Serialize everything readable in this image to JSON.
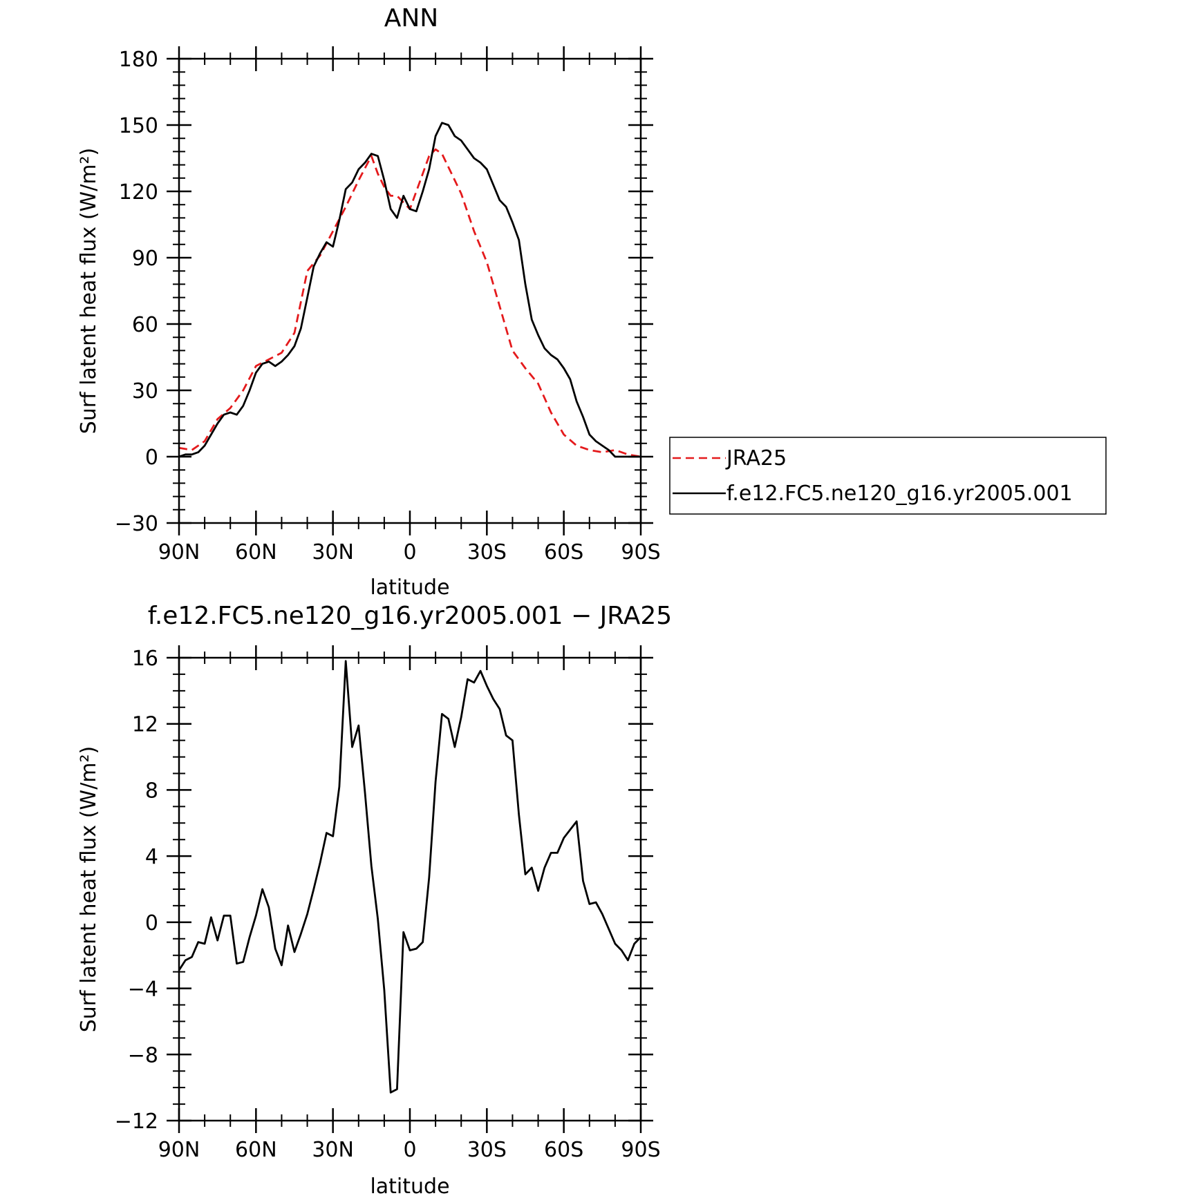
{
  "chart_data": [
    {
      "type": "line",
      "title": "ANN",
      "xlabel": "latitude",
      "ylabel": "Surf latent heat flux (W/m²)",
      "xlim": [
        90,
        -90
      ],
      "ylim": [
        -30,
        180
      ],
      "yticks": [
        -30,
        0,
        30,
        60,
        90,
        120,
        150,
        180
      ],
      "xticks": [
        90,
        60,
        30,
        0,
        -30,
        -60,
        -90
      ],
      "xtick_labels": [
        "90N",
        "60N",
        "30N",
        "0",
        "30S",
        "60S",
        "90S"
      ],
      "legend_position": "right",
      "series": [
        {
          "name": "JRA25",
          "color": "#e41a1c",
          "dash": "dashed",
          "x": [
            90,
            85,
            80,
            75,
            70,
            65,
            60,
            55,
            50,
            45,
            40,
            35,
            30,
            25,
            20,
            15,
            12.5,
            10,
            7.5,
            5,
            2.5,
            0,
            -2.5,
            -5,
            -7.5,
            -10,
            -12.5,
            -15,
            -20,
            -25,
            -30,
            -35,
            -40,
            -45,
            -50,
            -55,
            -60,
            -65,
            -70,
            -75,
            -80,
            -85,
            -90
          ],
          "y": [
            4,
            3,
            7,
            17,
            22,
            30,
            41,
            44,
            47,
            56,
            84,
            91,
            102,
            113,
            125,
            136,
            128,
            122,
            118,
            118,
            115,
            112,
            120,
            128,
            136,
            139,
            137,
            131,
            119,
            102,
            88,
            68,
            48,
            40,
            33,
            20,
            10,
            5,
            3,
            2,
            3,
            1,
            0
          ]
        },
        {
          "name": "f.e12.FC5.ne120_g16.yr2005.001",
          "color": "#000000",
          "dash": "solid",
          "x": [
            90,
            87.5,
            85,
            82.5,
            80,
            77.5,
            75,
            72.5,
            70,
            67.5,
            65,
            62.5,
            60,
            57.5,
            55,
            52.5,
            50,
            47.5,
            45,
            42.5,
            40,
            37.5,
            35,
            32.5,
            30,
            27.5,
            25,
            22.5,
            20,
            17.5,
            15,
            12.5,
            10,
            7.5,
            5,
            2.5,
            0,
            -2.5,
            -5,
            -7.5,
            -10,
            -12.5,
            -15,
            -17.5,
            -20,
            -22.5,
            -25,
            -27.5,
            -30,
            -32.5,
            -35,
            -37.5,
            -40,
            -42.5,
            -45,
            -47.5,
            -50,
            -52.5,
            -55,
            -57.5,
            -60,
            -62.5,
            -65,
            -67.5,
            -70,
            -72.5,
            -75,
            -77.5,
            -80,
            -82.5,
            -85,
            -87.5,
            -90
          ],
          "y": [
            0,
            1,
            1,
            2,
            5,
            10,
            15,
            19,
            20,
            19,
            23,
            30,
            38,
            42,
            43,
            41,
            43,
            46,
            50,
            58,
            72,
            86,
            92,
            97,
            95,
            107,
            121,
            124,
            130,
            133,
            137,
            136,
            125,
            112,
            108,
            118,
            112,
            111,
            120,
            130,
            145,
            151,
            150,
            145,
            143,
            139,
            135,
            133,
            130,
            123,
            116,
            113,
            106,
            98,
            78,
            62,
            55,
            49,
            46,
            44,
            40,
            35,
            25,
            18,
            10,
            7,
            5,
            3,
            0,
            0,
            0,
            0,
            0
          ]
        }
      ]
    },
    {
      "type": "line",
      "title": "f.e12.FC5.ne120_g16.yr2005.001 − JRA25",
      "xlabel": "latitude",
      "ylabel": "Surf latent heat flux (W/m²)",
      "xlim": [
        90,
        -90
      ],
      "ylim": [
        -12,
        16
      ],
      "yticks": [
        -12,
        -8,
        -4,
        0,
        4,
        8,
        12,
        16
      ],
      "xticks": [
        90,
        60,
        30,
        0,
        -30,
        -60,
        -90
      ],
      "xtick_labels": [
        "90N",
        "60N",
        "30N",
        "0",
        "30S",
        "60S",
        "90S"
      ],
      "series": [
        {
          "color": "#000000",
          "dash": "solid",
          "x": [
            90,
            87.5,
            85,
            82.5,
            80,
            77.5,
            75,
            72.5,
            70,
            67.5,
            65,
            62.5,
            60,
            57.5,
            55,
            52.5,
            50,
            47.5,
            45,
            42.5,
            40,
            37.5,
            35,
            32.5,
            30,
            27.5,
            25,
            22.5,
            20,
            17.5,
            15,
            12.5,
            10,
            7.5,
            5,
            2.5,
            0,
            -2.5,
            -5,
            -7.5,
            -10,
            -12.5,
            -15,
            -17.5,
            -20,
            -22.5,
            -25,
            -27.5,
            -30,
            -32.5,
            -35,
            -37.5,
            -40,
            -42.5,
            -45,
            -47.5,
            -50,
            -52.5,
            -55,
            -57.5,
            -60,
            -62.5,
            -65,
            -67.5,
            -70,
            -72.5,
            -75,
            -77.5,
            -80,
            -82.5,
            -85,
            -87.5,
            -90
          ],
          "y": [
            -2.9,
            -2.3,
            -2.1,
            -1.2,
            -1.3,
            0.3,
            -1.1,
            0.4,
            0.4,
            -2.5,
            -2.4,
            -0.9,
            0.4,
            2.0,
            0.9,
            -1.6,
            -2.6,
            -0.2,
            -1.8,
            -0.7,
            0.5,
            2.0,
            3.6,
            5.4,
            5.2,
            8.2,
            15.8,
            10.6,
            11.9,
            7.8,
            3.4,
            0.2,
            -4.1,
            -10.3,
            -10.1,
            -0.6,
            -1.7,
            -1.6,
            -1.2,
            2.7,
            8.5,
            12.6,
            12.3,
            10.6,
            12.4,
            14.7,
            14.5,
            15.2,
            14.3,
            13.5,
            12.9,
            11.3,
            11.0,
            6.5,
            2.9,
            3.3,
            1.9,
            3.3,
            4.2,
            4.2,
            5.1,
            5.6,
            6.1,
            2.5,
            1.1,
            1.2,
            0.5,
            -0.4,
            -1.3,
            -1.7,
            -2.3,
            -1.3,
            -0.9
          ]
        }
      ]
    }
  ]
}
